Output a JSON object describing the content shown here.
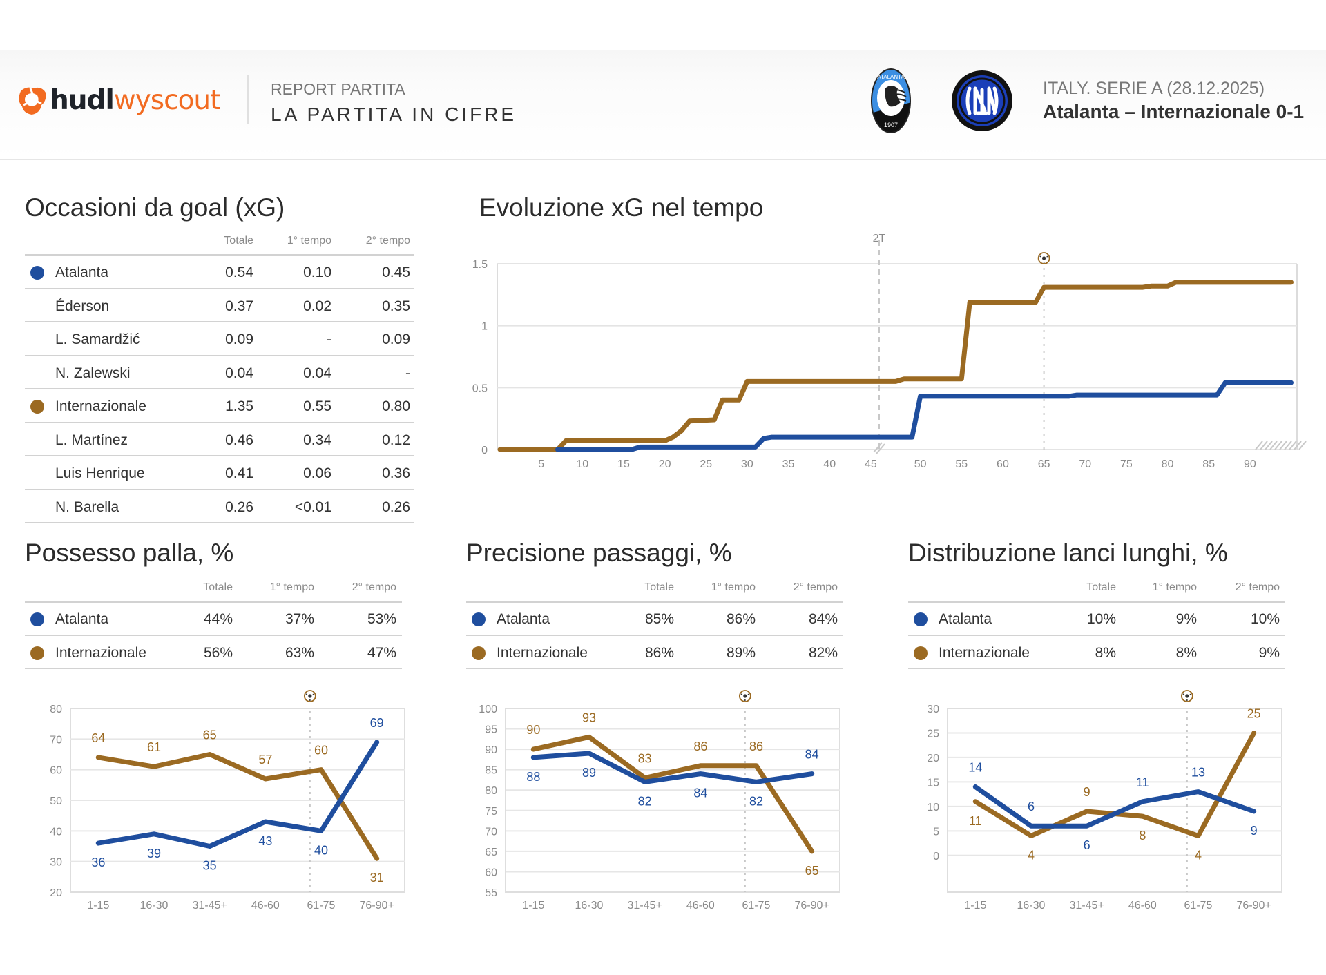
{
  "header": {
    "brand_bold": "hudl",
    "brand_light": "wyscout",
    "report_subtitle": "REPORT PARTITA",
    "report_title": "LA PARTITA IN CIFRE",
    "competition": "ITALY. SERIE A (28.12.2025)",
    "match": "Atalanta – Internazionale 0-1",
    "home_crest_text": "ATALANTA",
    "home_crest_year": "1907"
  },
  "colors": {
    "atalanta": "#1f4e9e",
    "inter": "#9b6a22",
    "brand_orange": "#f26b21"
  },
  "xg_table": {
    "title": "Occasioni da goal (xG)",
    "columns": [
      "Totale",
      "1° tempo",
      "2° tempo"
    ],
    "rows": [
      {
        "team": "atalanta",
        "name": "Atalanta",
        "values": [
          "0.54",
          "0.10",
          "0.45"
        ]
      },
      {
        "team": "",
        "name": "Éderson",
        "values": [
          "0.37",
          "0.02",
          "0.35"
        ]
      },
      {
        "team": "",
        "name": "L. Samardžić",
        "values": [
          "0.09",
          "-",
          "0.09"
        ]
      },
      {
        "team": "",
        "name": "N. Zalewski",
        "values": [
          "0.04",
          "0.04",
          "-"
        ]
      },
      {
        "team": "inter",
        "name": "Internazionale",
        "values": [
          "1.35",
          "0.55",
          "0.80"
        ]
      },
      {
        "team": "",
        "name": "L. Martínez",
        "values": [
          "0.46",
          "0.34",
          "0.12"
        ]
      },
      {
        "team": "",
        "name": "Luis Henrique",
        "values": [
          "0.41",
          "0.06",
          "0.36"
        ]
      },
      {
        "team": "",
        "name": "N. Barella",
        "values": [
          "0.26",
          "<0.01",
          "0.26"
        ]
      }
    ]
  },
  "possession_table": {
    "title": "Possesso palla, %",
    "columns": [
      "Totale",
      "1° tempo",
      "2° tempo"
    ],
    "rows": [
      {
        "team": "atalanta",
        "name": "Atalanta",
        "values": [
          "44%",
          "37%",
          "53%"
        ]
      },
      {
        "team": "inter",
        "name": "Internazionale",
        "values": [
          "56%",
          "63%",
          "47%"
        ]
      }
    ]
  },
  "passing_table": {
    "title": "Precisione passaggi, %",
    "columns": [
      "Totale",
      "1° tempo",
      "2° tempo"
    ],
    "rows": [
      {
        "team": "atalanta",
        "name": "Atalanta",
        "values": [
          "85%",
          "86%",
          "84%"
        ]
      },
      {
        "team": "inter",
        "name": "Internazionale",
        "values": [
          "86%",
          "89%",
          "82%"
        ]
      }
    ]
  },
  "longballs_table": {
    "title": "Distribuzione lanci lunghi, %",
    "columns": [
      "Totale",
      "1° tempo",
      "2° tempo"
    ],
    "rows": [
      {
        "team": "atalanta",
        "name": "Atalanta",
        "values": [
          "10%",
          "9%",
          "10%"
        ]
      },
      {
        "team": "inter",
        "name": "Internazionale",
        "values": [
          "8%",
          "8%",
          "9%"
        ]
      }
    ]
  },
  "chart_data": [
    {
      "id": "xg_timeline",
      "type": "line",
      "title": "Evoluzione xG nel tempo",
      "xlabel": "",
      "ylabel": "",
      "ylim": [
        0,
        1.5
      ],
      "yticks": [
        "0",
        "0.5",
        "1",
        "1.5"
      ],
      "xticks_first_half": [
        "5",
        "10",
        "15",
        "20",
        "25",
        "30",
        "35",
        "40",
        "45"
      ],
      "xticks_second_half": [
        "50",
        "55",
        "60",
        "65",
        "70",
        "75",
        "80",
        "85",
        "90"
      ],
      "half_marker_label": "2T",
      "goal_minute": 65,
      "goal_icon": "soccer-ball-icon",
      "grid": true,
      "series": [
        {
          "name": "Internazionale",
          "team": "inter",
          "points": [
            [
              0,
              0
            ],
            [
              7,
              0
            ],
            [
              8,
              0.07
            ],
            [
              20,
              0.07
            ],
            [
              21,
              0.1
            ],
            [
              22,
              0.15
            ],
            [
              23,
              0.23
            ],
            [
              26,
              0.24
            ],
            [
              27,
              0.4
            ],
            [
              29,
              0.4
            ],
            [
              30,
              0.55
            ],
            [
              45,
              0.55
            ],
            [
              47,
              0.55
            ],
            [
              48,
              0.57
            ],
            [
              55,
              0.57
            ],
            [
              56,
              1.19
            ],
            [
              64,
              1.19
            ],
            [
              65,
              1.31
            ],
            [
              77,
              1.31
            ],
            [
              78,
              1.32
            ],
            [
              80,
              1.32
            ],
            [
              81,
              1.35
            ],
            [
              95,
              1.35
            ]
          ]
        },
        {
          "name": "Atalanta",
          "team": "atalanta",
          "points": [
            [
              7,
              0
            ],
            [
              16,
              0
            ],
            [
              17,
              0.02
            ],
            [
              31,
              0.02
            ],
            [
              32,
              0.09
            ],
            [
              33,
              0.1
            ],
            [
              45,
              0.1
            ],
            [
              49,
              0.1
            ],
            [
              50,
              0.43
            ],
            [
              68,
              0.43
            ],
            [
              69,
              0.44
            ],
            [
              86,
              0.44
            ],
            [
              87,
              0.54
            ],
            [
              95,
              0.54
            ]
          ]
        }
      ]
    },
    {
      "id": "possession_chart",
      "type": "line",
      "title": "",
      "categories": [
        "1-15",
        "16-30",
        "31-45+",
        "46-60",
        "61-75",
        "76-90+"
      ],
      "ylim": [
        20,
        80
      ],
      "yticks": [
        "20",
        "30",
        "40",
        "50",
        "60",
        "70",
        "80"
      ],
      "goal_after_index": 4,
      "grid": true,
      "series": [
        {
          "name": "Internazionale",
          "team": "inter",
          "values": [
            64,
            61,
            65,
            57,
            60,
            31
          ],
          "label_pos": [
            "above",
            "above",
            "above",
            "above",
            "above",
            "below"
          ]
        },
        {
          "name": "Atalanta",
          "team": "atalanta",
          "values": [
            36,
            39,
            35,
            43,
            40,
            69
          ],
          "label_pos": [
            "below",
            "below",
            "below",
            "below",
            "below",
            "above"
          ]
        }
      ]
    },
    {
      "id": "passing_chart",
      "type": "line",
      "title": "",
      "categories": [
        "1-15",
        "16-30",
        "31-45+",
        "46-60",
        "61-75",
        "76-90+"
      ],
      "ylim": [
        55,
        100
      ],
      "yticks": [
        "55",
        "60",
        "65",
        "70",
        "75",
        "80",
        "85",
        "90",
        "95",
        "100"
      ],
      "goal_after_index": 4,
      "grid": true,
      "series": [
        {
          "name": "Internazionale",
          "team": "inter",
          "values": [
            90,
            93,
            83,
            86,
            86,
            65
          ],
          "label_pos": [
            "above",
            "above",
            "above",
            "above",
            "above",
            "below"
          ]
        },
        {
          "name": "Atalanta",
          "team": "atalanta",
          "values": [
            88,
            89,
            82,
            84,
            82,
            84
          ],
          "label_pos": [
            "below",
            "below",
            "below",
            "below",
            "below",
            "above"
          ]
        }
      ]
    },
    {
      "id": "longballs_chart",
      "type": "line",
      "title": "",
      "categories": [
        "1-15",
        "16-30",
        "31-45+",
        "46-60",
        "61-75",
        "76-90+"
      ],
      "ylim": [
        -7.5,
        30
      ],
      "yticks": [
        "0",
        "5",
        "10",
        "15",
        "20",
        "25",
        "30"
      ],
      "goal_after_index": 4,
      "grid": true,
      "series": [
        {
          "name": "Internazionale",
          "team": "inter",
          "values": [
            11,
            4,
            9,
            8,
            4,
            25
          ],
          "label_pos": [
            "below",
            "below",
            "above",
            "below",
            "below",
            "above"
          ]
        },
        {
          "name": "Atalanta",
          "team": "atalanta",
          "values": [
            14,
            6,
            6,
            11,
            13,
            9
          ],
          "label_pos": [
            "above",
            "above",
            "below",
            "above",
            "above",
            "below"
          ]
        }
      ]
    }
  ]
}
